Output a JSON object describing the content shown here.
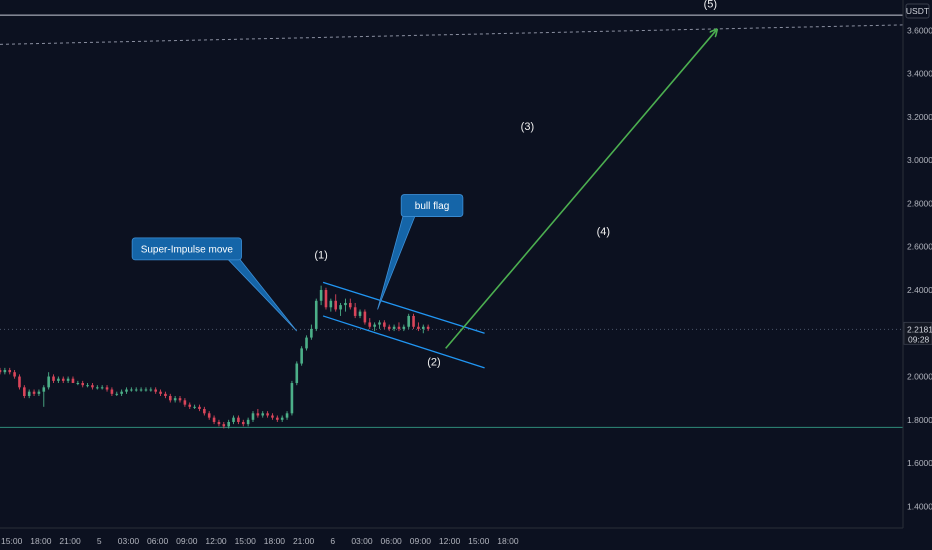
{
  "chart_data": {
    "type": "candlestick",
    "currency": "USDT",
    "price_axis": {
      "range": [
        1.3,
        3.74
      ],
      "ticks": [
        "3.6000",
        "3.4000",
        "3.2000",
        "3.0000",
        "2.8000",
        "2.6000",
        "2.4000",
        "2.2000",
        "2.0000",
        "1.8000",
        "1.6000",
        "1.4000"
      ],
      "tick_values": [
        3.6,
        3.4,
        3.2,
        3.0,
        2.8,
        2.6,
        2.4,
        2.2,
        2.0,
        1.8,
        1.6,
        1.4
      ],
      "last_price_label": "2.2181",
      "last_price": 2.2181,
      "countdown_label": "09:28"
    },
    "time_axis": {
      "range_hours": [
        -1.2,
        91.6
      ],
      "ticks": [
        "15:00",
        "18:00",
        "21:00",
        "5",
        "03:00",
        "06:00",
        "09:00",
        "12:00",
        "15:00",
        "18:00",
        "21:00",
        "6",
        "03:00",
        "06:00",
        "09:00",
        "12:00",
        "15:00",
        "18:00"
      ],
      "tick_hours": [
        0,
        3,
        6,
        9,
        12,
        15,
        18,
        21,
        24,
        27,
        30,
        33,
        36,
        39,
        42,
        45,
        48,
        51
      ]
    },
    "candles": [
      [
        -1.2,
        2.03,
        2.04,
        2.01,
        2.02
      ],
      [
        -0.7,
        2.02,
        2.04,
        2.01,
        2.03
      ],
      [
        -0.2,
        2.03,
        2.04,
        2.01,
        2.02
      ],
      [
        0.3,
        2.02,
        2.03,
        1.99,
        2.0
      ],
      [
        0.8,
        2.0,
        2.01,
        1.94,
        1.95
      ],
      [
        1.3,
        1.95,
        1.96,
        1.9,
        1.91
      ],
      [
        1.8,
        1.91,
        1.94,
        1.9,
        1.93
      ],
      [
        2.3,
        1.93,
        1.94,
        1.91,
        1.92
      ],
      [
        2.8,
        1.92,
        1.94,
        1.91,
        1.93
      ],
      [
        3.3,
        1.93,
        1.96,
        1.86,
        1.95
      ],
      [
        3.8,
        1.95,
        2.02,
        1.94,
        2.0
      ],
      [
        4.3,
        2.0,
        2.01,
        1.97,
        1.98
      ],
      [
        4.8,
        1.98,
        2.0,
        1.97,
        1.99
      ],
      [
        5.3,
        1.99,
        2.0,
        1.97,
        1.98
      ],
      [
        5.8,
        1.98,
        2.0,
        1.97,
        1.99
      ],
      [
        6.3,
        1.99,
        2.0,
        1.97,
        1.97
      ],
      [
        6.8,
        1.97,
        1.98,
        1.96,
        1.97
      ],
      [
        7.3,
        1.97,
        1.98,
        1.95,
        1.96
      ],
      [
        7.8,
        1.96,
        1.97,
        1.95,
        1.96
      ],
      [
        8.3,
        1.96,
        1.97,
        1.94,
        1.95
      ],
      [
        8.8,
        1.95,
        1.96,
        1.94,
        1.95
      ],
      [
        9.3,
        1.95,
        1.96,
        1.94,
        1.95
      ],
      [
        9.8,
        1.95,
        1.96,
        1.93,
        1.94
      ],
      [
        10.3,
        1.94,
        1.95,
        1.91,
        1.92
      ],
      [
        10.8,
        1.92,
        1.93,
        1.91,
        1.92
      ],
      [
        11.3,
        1.92,
        1.94,
        1.91,
        1.93
      ],
      [
        11.8,
        1.93,
        1.95,
        1.92,
        1.94
      ],
      [
        12.3,
        1.94,
        1.95,
        1.93,
        1.94
      ],
      [
        12.8,
        1.94,
        1.95,
        1.93,
        1.94
      ],
      [
        13.3,
        1.94,
        1.95,
        1.93,
        1.94
      ],
      [
        13.8,
        1.94,
        1.95,
        1.93,
        1.94
      ],
      [
        14.3,
        1.94,
        1.95,
        1.93,
        1.94
      ],
      [
        14.8,
        1.94,
        1.95,
        1.92,
        1.93
      ],
      [
        15.3,
        1.93,
        1.94,
        1.91,
        1.92
      ],
      [
        15.8,
        1.92,
        1.93,
        1.9,
        1.91
      ],
      [
        16.3,
        1.91,
        1.92,
        1.88,
        1.89
      ],
      [
        16.8,
        1.89,
        1.91,
        1.88,
        1.9
      ],
      [
        17.3,
        1.9,
        1.91,
        1.88,
        1.89
      ],
      [
        17.8,
        1.89,
        1.9,
        1.86,
        1.87
      ],
      [
        18.3,
        1.87,
        1.88,
        1.85,
        1.86
      ],
      [
        18.8,
        1.86,
        1.87,
        1.85,
        1.86
      ],
      [
        19.3,
        1.86,
        1.87,
        1.84,
        1.85
      ],
      [
        19.8,
        1.85,
        1.86,
        1.82,
        1.83
      ],
      [
        20.3,
        1.83,
        1.84,
        1.8,
        1.81
      ],
      [
        20.8,
        1.81,
        1.82,
        1.78,
        1.79
      ],
      [
        21.3,
        1.79,
        1.8,
        1.77,
        1.78
      ],
      [
        21.8,
        1.78,
        1.79,
        1.76,
        1.77
      ],
      [
        22.3,
        1.77,
        1.8,
        1.76,
        1.79
      ],
      [
        22.8,
        1.79,
        1.82,
        1.78,
        1.81
      ],
      [
        23.3,
        1.81,
        1.82,
        1.78,
        1.79
      ],
      [
        23.8,
        1.79,
        1.8,
        1.77,
        1.78
      ],
      [
        24.3,
        1.78,
        1.81,
        1.77,
        1.8
      ],
      [
        24.8,
        1.8,
        1.84,
        1.79,
        1.83
      ],
      [
        25.3,
        1.83,
        1.85,
        1.81,
        1.82
      ],
      [
        25.8,
        1.82,
        1.84,
        1.81,
        1.83
      ],
      [
        26.3,
        1.83,
        1.84,
        1.81,
        1.82
      ],
      [
        26.8,
        1.82,
        1.83,
        1.8,
        1.81
      ],
      [
        27.3,
        1.81,
        1.82,
        1.79,
        1.8
      ],
      [
        27.8,
        1.8,
        1.82,
        1.79,
        1.81
      ],
      [
        28.3,
        1.81,
        1.84,
        1.8,
        1.83
      ],
      [
        28.8,
        1.83,
        1.98,
        1.82,
        1.97
      ],
      [
        29.3,
        1.97,
        2.07,
        1.96,
        2.06
      ],
      [
        29.8,
        2.06,
        2.14,
        2.05,
        2.13
      ],
      [
        30.3,
        2.13,
        2.19,
        2.12,
        2.18
      ],
      [
        30.8,
        2.18,
        2.24,
        2.17,
        2.22
      ],
      [
        31.3,
        2.22,
        2.36,
        2.21,
        2.35
      ],
      [
        31.8,
        2.35,
        2.42,
        2.33,
        2.4
      ],
      [
        32.3,
        2.4,
        2.41,
        2.31,
        2.32
      ],
      [
        32.8,
        2.32,
        2.36,
        2.3,
        2.35
      ],
      [
        33.3,
        2.35,
        2.38,
        2.3,
        2.31
      ],
      [
        33.8,
        2.31,
        2.34,
        2.28,
        2.33
      ],
      [
        34.3,
        2.33,
        2.36,
        2.3,
        2.34
      ],
      [
        34.8,
        2.34,
        2.36,
        2.31,
        2.32
      ],
      [
        35.3,
        2.32,
        2.34,
        2.27,
        2.28
      ],
      [
        35.8,
        2.28,
        2.31,
        2.27,
        2.3
      ],
      [
        36.3,
        2.3,
        2.31,
        2.24,
        2.25
      ],
      [
        36.8,
        2.25,
        2.27,
        2.22,
        2.23
      ],
      [
        37.3,
        2.23,
        2.25,
        2.21,
        2.24
      ],
      [
        37.8,
        2.24,
        2.26,
        2.22,
        2.25
      ],
      [
        38.3,
        2.25,
        2.26,
        2.22,
        2.23
      ],
      [
        38.8,
        2.23,
        2.24,
        2.21,
        2.22
      ],
      [
        39.3,
        2.22,
        2.24,
        2.21,
        2.23
      ],
      [
        39.8,
        2.23,
        2.25,
        2.21,
        2.22
      ],
      [
        40.3,
        2.22,
        2.24,
        2.21,
        2.23
      ],
      [
        40.8,
        2.23,
        2.29,
        2.22,
        2.28
      ],
      [
        41.3,
        2.28,
        2.29,
        2.22,
        2.23
      ],
      [
        41.8,
        2.23,
        2.25,
        2.21,
        2.22
      ],
      [
        42.3,
        2.22,
        2.24,
        2.2,
        2.23
      ],
      [
        42.8,
        2.23,
        2.24,
        2.21,
        2.22
      ]
    ],
    "horizontal_lines": [
      {
        "price": 3.67,
        "color": "#c7cbd6",
        "style": "solid"
      },
      {
        "price": 1.765,
        "color": "#2e8b79",
        "style": "solid"
      },
      {
        "price": 2.2181,
        "color": "#4a5568",
        "style": "dotted"
      }
    ],
    "trendlines": [
      {
        "name": "dashed-target-line",
        "from": [
          -1.2,
          3.535
        ],
        "to": [
          91.6,
          3.625
        ],
        "color": "#8a8fa0",
        "style": "dashed"
      },
      {
        "name": "flag-top-line",
        "from": [
          32.0,
          2.435
        ],
        "to": [
          48.6,
          2.2
        ],
        "color": "#2196f3",
        "style": "solid"
      },
      {
        "name": "flag-bottom-line",
        "from": [
          32.0,
          2.28
        ],
        "to": [
          48.6,
          2.04
        ],
        "color": "#2196f3",
        "style": "solid"
      },
      {
        "name": "projection-arrow",
        "from": [
          44.6,
          2.13
        ],
        "to": [
          72.4,
          3.6
        ],
        "color": "#4caf50",
        "style": "solid",
        "arrow": true
      }
    ],
    "wave_labels": [
      {
        "text": "(1)",
        "x": 31.8,
        "price": 2.545
      },
      {
        "text": "(2)",
        "x": 43.4,
        "price": 2.05
      },
      {
        "text": "(3)",
        "x": 53.0,
        "price": 3.14
      },
      {
        "text": "(4)",
        "x": 60.8,
        "price": 2.655
      },
      {
        "text": "(5)",
        "x": 71.8,
        "price": 3.705
      }
    ],
    "callouts": [
      {
        "text": "Super-Impulse move",
        "box_anchor": [
          18.0,
          2.59
        ],
        "pointer": [
          29.3,
          2.21
        ]
      },
      {
        "text": "bull flag",
        "box_anchor": [
          43.2,
          2.79
        ],
        "pointer": [
          37.6,
          2.31
        ]
      }
    ],
    "colors": {
      "background": "#0c1120",
      "up": "#4caf88",
      "down": "#d9455a",
      "callout_fill": "#1565a8",
      "callout_border": "#3d8fd6",
      "axis_text": "#b2b5be"
    }
  }
}
